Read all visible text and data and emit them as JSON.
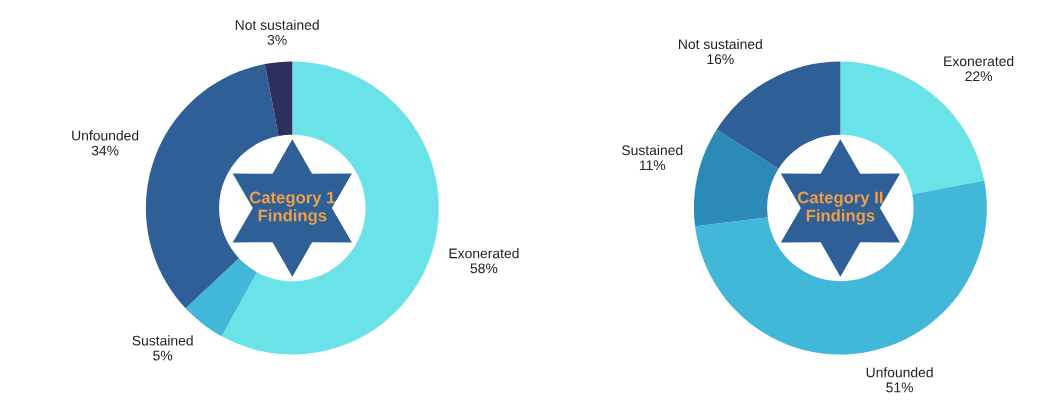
{
  "chart_data": [
    {
      "type": "donut",
      "title": "Category 1\nFindings",
      "categories": [
        "Exonerated",
        "Sustained",
        "Unfounded",
        "Not sustained"
      ],
      "values": [
        58,
        5,
        34,
        3
      ],
      "value_labels": [
        "58%",
        "5%",
        "34%",
        "3%"
      ],
      "colors": [
        "#6ae3e8",
        "#42b8d8",
        "#2e5f96",
        "#2d2f5e"
      ]
    },
    {
      "type": "donut",
      "title": "Category II\nFindings",
      "categories": [
        "Exonerated",
        "Unfounded",
        "Sustained",
        "Not sustained"
      ],
      "values": [
        22,
        51,
        11,
        16
      ],
      "value_labels": [
        "22%",
        "51%",
        "11%",
        "16%"
      ],
      "colors": [
        "#6ae3e8",
        "#42b8d8",
        "#2b8ab8",
        "#2e5f96"
      ]
    }
  ]
}
